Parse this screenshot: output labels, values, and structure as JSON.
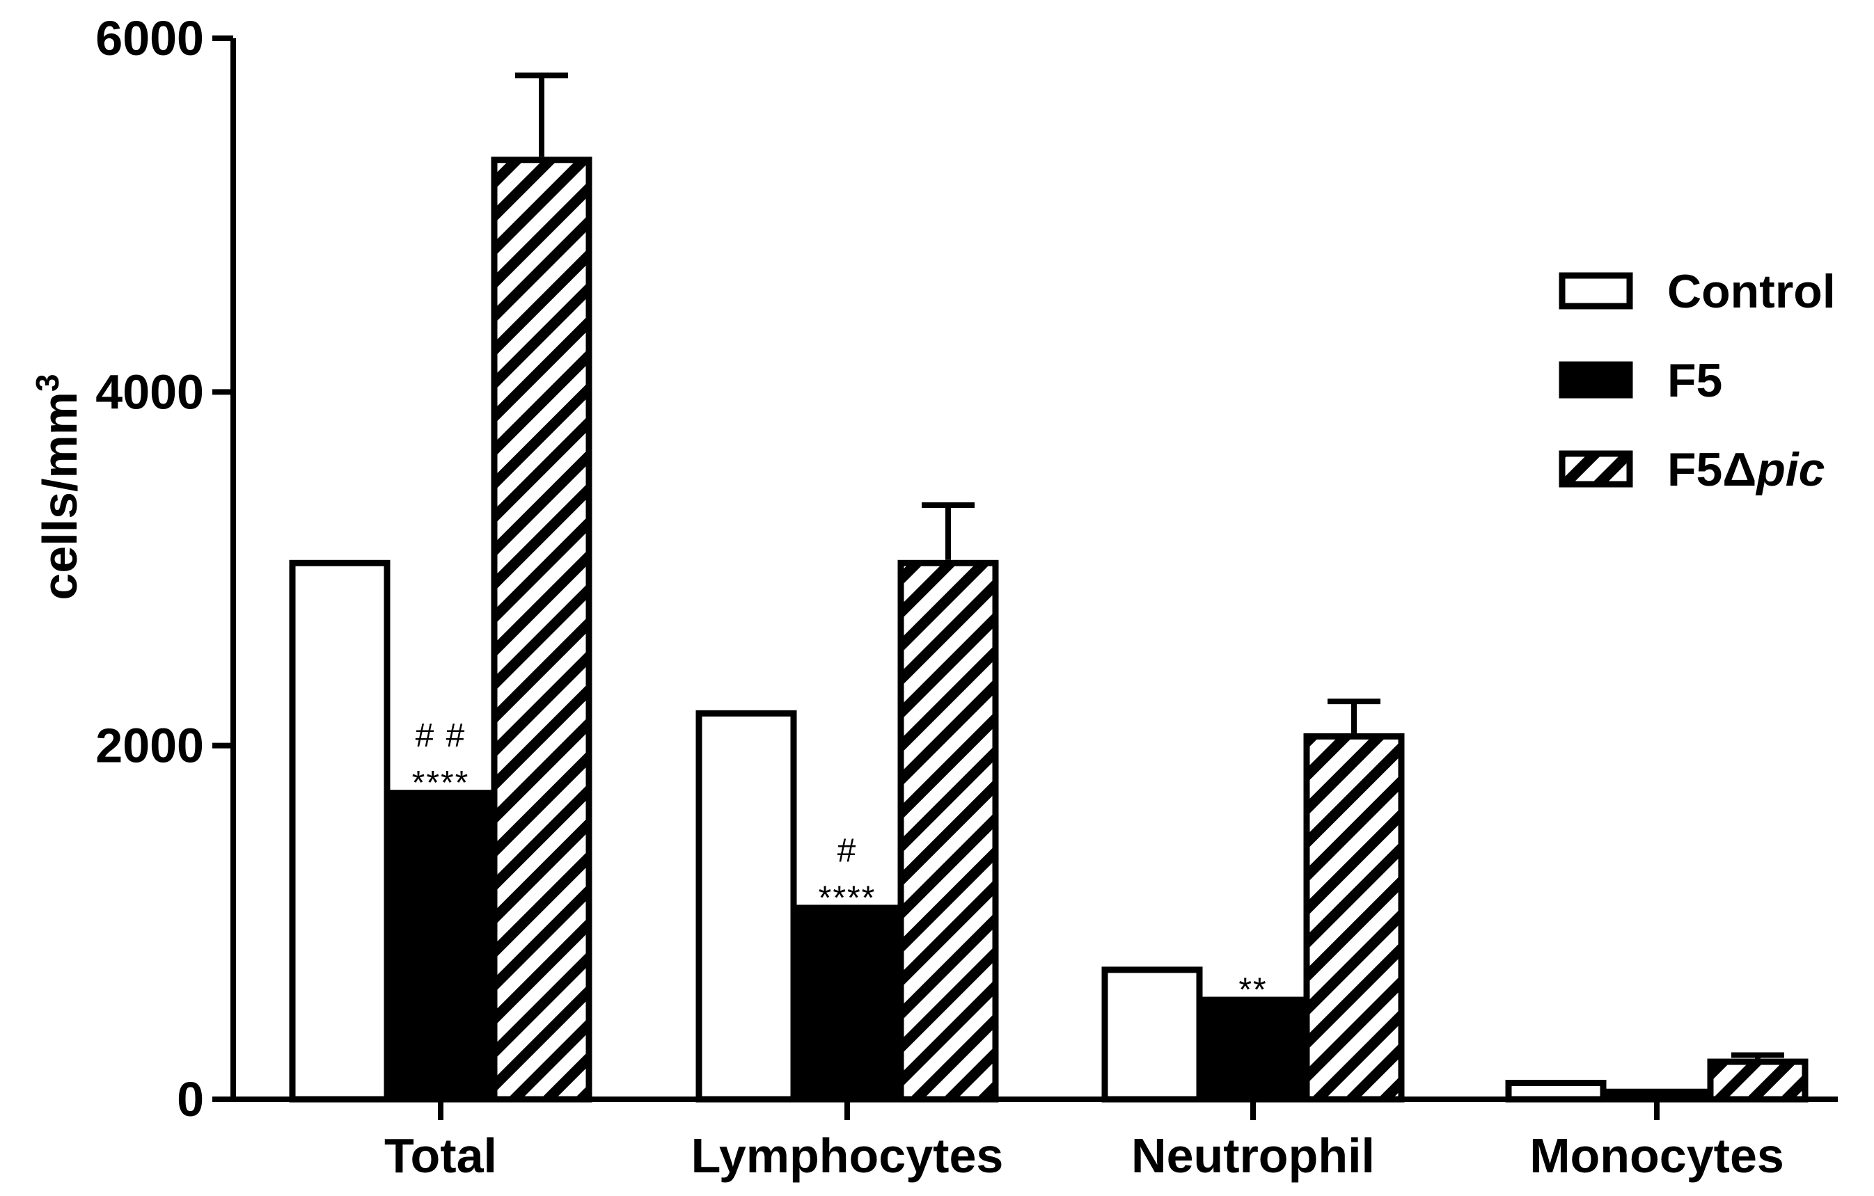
{
  "chart_data": {
    "type": "bar",
    "title": "",
    "xlabel": "",
    "ylabel": "cells/mm",
    "ylabel_superscript": "3",
    "ylim": [
      0,
      6000
    ],
    "yticks": [
      "0",
      "2000",
      "4000",
      "6000"
    ],
    "categories": [
      "Total",
      "Lymphocytes",
      "Neutrophil",
      "Monocytes"
    ],
    "series": [
      {
        "name": "Control",
        "pattern": "open",
        "values": [
          3050,
          2200,
          750,
          110
        ],
        "errors": [
          0,
          0,
          0,
          0
        ]
      },
      {
        "name": "F5",
        "pattern": "solid",
        "values": [
          1750,
          1100,
          580,
          60
        ],
        "errors": [
          0,
          0,
          0,
          0
        ]
      },
      {
        "name": "F5Δpic",
        "name_main": "F5Δ",
        "name_italic": "pic",
        "pattern": "hatched",
        "values": [
          5330,
          3050,
          2070,
          230
        ],
        "errors": [
          460,
          310,
          180,
          20
        ]
      }
    ],
    "annotations": [
      {
        "category": "Total",
        "series": "F5",
        "lines": [
          "# #",
          "****"
        ]
      },
      {
        "category": "Lymphocytes",
        "series": "F5",
        "lines": [
          "#",
          "****"
        ]
      },
      {
        "category": "Neutrophil",
        "series": "F5",
        "lines": [
          "**"
        ]
      }
    ],
    "legend": {
      "position": "right",
      "entries": [
        "Control",
        "F5",
        "F5Δpic"
      ]
    },
    "colors": {
      "fill_solid": "#000000",
      "stroke": "#000000",
      "background": "#ffffff"
    }
  }
}
